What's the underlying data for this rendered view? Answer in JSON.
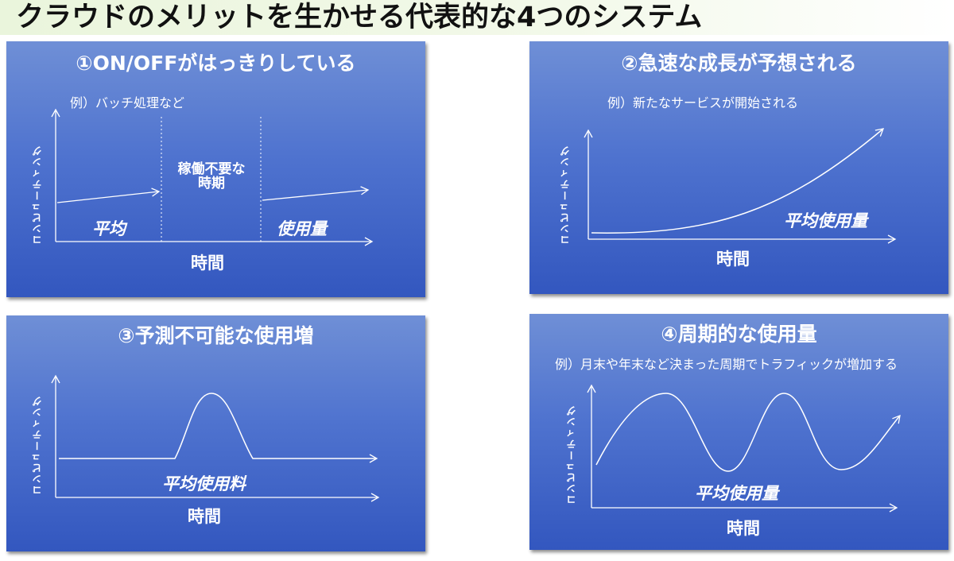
{
  "main_title": "クラウドのメリットを生かせる代表的な4つのシステム",
  "panels": {
    "p1": {
      "title": "①ON/OFFがはっきりしている",
      "subtitle": "例）バッチ処理など",
      "y_axis": "コンピューティング",
      "x_axis": "時間",
      "label_left": "平均",
      "label_right": "使用量",
      "middle_line1": "稼働不要な",
      "middle_line2": "時期"
    },
    "p2": {
      "title": "②急速な成長が予想される",
      "subtitle": "例）新たなサービスが開始される",
      "y_axis": "コンピューティング",
      "x_axis": "時間",
      "curve_label": "平均使用量"
    },
    "p3": {
      "title": "③予測不可能な使用増",
      "y_axis": "コンピューティング",
      "x_axis": "時間",
      "curve_label": "平均使用料"
    },
    "p4": {
      "title": "④周期的な使用量",
      "subtitle": "例）月末や年末など決まった周期でトラフィックが増加する",
      "y_axis": "コンピューティング",
      "x_axis": "時間",
      "curve_label": "平均使用量"
    }
  },
  "colors": {
    "panel_top": "#6f8fd6",
    "panel_bottom": "#3357bf",
    "title_band": "#eaf5dc",
    "line": "#ffffff"
  }
}
